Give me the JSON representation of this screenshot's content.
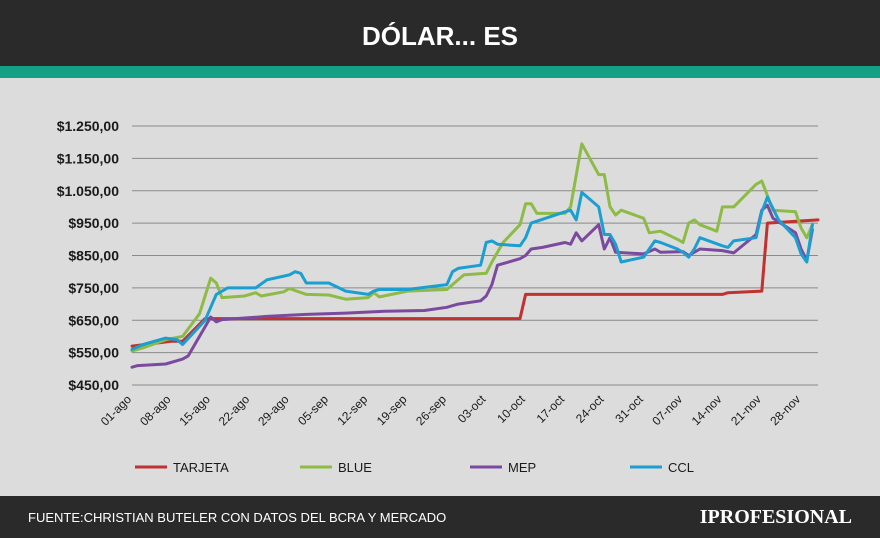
{
  "header": {
    "title": "DÓLAR... ES"
  },
  "footer": {
    "source": "FUENTE:CHRISTIAN BUTELER CON DATOS DEL BCRA Y MERCADO",
    "brand": "IPROFESIONAL"
  },
  "colors": {
    "header_bg": "#2a2a2a",
    "accent_band": "#14a085",
    "chart_bg": "#dcdcdc",
    "tarjeta": "#c0312f",
    "blue": "#8dbb45",
    "mep": "#7b4a9e",
    "ccl": "#1a9fd0"
  },
  "chart_data": {
    "type": "line",
    "title": "DÓLAR... ES",
    "ylim": [
      450,
      1250
    ],
    "yticks": [
      450,
      550,
      650,
      750,
      850,
      950,
      1050,
      1150,
      1250
    ],
    "ytick_labels": [
      "$450,00",
      "$550,00",
      "$650,00",
      "$750,00",
      "$850,00",
      "$950,00",
      "$1.050,00",
      "$1.150,00",
      "$1.250,00"
    ],
    "xticks": [
      "2023-08-01",
      "2023-08-08",
      "2023-08-15",
      "2023-08-22",
      "2023-08-29",
      "2023-09-05",
      "2023-09-12",
      "2023-09-19",
      "2023-09-26",
      "2023-10-03",
      "2023-10-10",
      "2023-10-17",
      "2023-10-24",
      "2023-10-31",
      "2023-11-07",
      "2023-11-14",
      "2023-11-21",
      "2023-11-28"
    ],
    "xtick_labels": [
      "01-ago",
      "08-ago",
      "15-ago",
      "22-ago",
      "29-ago",
      "05-sep",
      "12-sep",
      "19-sep",
      "26-sep",
      "03-oct",
      "10-oct",
      "17-oct",
      "24-oct",
      "31-oct",
      "07-nov",
      "14-nov",
      "21-nov",
      "28-nov"
    ],
    "xlim": [
      "2023-08-01",
      "2023-12-01"
    ],
    "grid": "horizontal",
    "legend": "bottom",
    "series": [
      {
        "name": "TARJETA",
        "color": "#c0312f",
        "points": [
          [
            "2023-08-01",
            570
          ],
          [
            "2023-08-08",
            585
          ],
          [
            "2023-08-10",
            585
          ],
          [
            "2023-08-14",
            655
          ],
          [
            "2023-10-09",
            655
          ],
          [
            "2023-10-10",
            730
          ],
          [
            "2023-11-14",
            730
          ],
          [
            "2023-11-15",
            735
          ],
          [
            "2023-11-21",
            740
          ],
          [
            "2023-11-22",
            950
          ],
          [
            "2023-12-01",
            960
          ]
        ]
      },
      {
        "name": "BLUE",
        "color": "#8dbb45",
        "points": [
          [
            "2023-08-01",
            555
          ],
          [
            "2023-08-03",
            565
          ],
          [
            "2023-08-07",
            590
          ],
          [
            "2023-08-10",
            600
          ],
          [
            "2023-08-13",
            670
          ],
          [
            "2023-08-15",
            780
          ],
          [
            "2023-08-16",
            765
          ],
          [
            "2023-08-17",
            720
          ],
          [
            "2023-08-21",
            725
          ],
          [
            "2023-08-23",
            735
          ],
          [
            "2023-08-24",
            725
          ],
          [
            "2023-08-28",
            738
          ],
          [
            "2023-08-29",
            748
          ],
          [
            "2023-09-01",
            730
          ],
          [
            "2023-09-05",
            728
          ],
          [
            "2023-09-08",
            715
          ],
          [
            "2023-09-12",
            720
          ],
          [
            "2023-09-13",
            735
          ],
          [
            "2023-09-14",
            722
          ],
          [
            "2023-09-19",
            740
          ],
          [
            "2023-09-26",
            745
          ],
          [
            "2023-09-29",
            790
          ],
          [
            "2023-10-03",
            795
          ],
          [
            "2023-10-04",
            830
          ],
          [
            "2023-10-06",
            890
          ],
          [
            "2023-10-09",
            945
          ],
          [
            "2023-10-10",
            1010
          ],
          [
            "2023-10-11",
            1010
          ],
          [
            "2023-10-12",
            980
          ],
          [
            "2023-10-17",
            980
          ],
          [
            "2023-10-18",
            1000
          ],
          [
            "2023-10-20",
            1195
          ],
          [
            "2023-10-23",
            1100
          ],
          [
            "2023-10-24",
            1100
          ],
          [
            "2023-10-25",
            1000
          ],
          [
            "2023-10-26",
            975
          ],
          [
            "2023-10-27",
            990
          ],
          [
            "2023-10-31",
            965
          ],
          [
            "2023-11-01",
            920
          ],
          [
            "2023-11-03",
            925
          ],
          [
            "2023-11-06",
            900
          ],
          [
            "2023-11-07",
            890
          ],
          [
            "2023-11-08",
            950
          ],
          [
            "2023-11-09",
            960
          ],
          [
            "2023-11-10",
            945
          ],
          [
            "2023-11-13",
            925
          ],
          [
            "2023-11-14",
            1000
          ],
          [
            "2023-11-16",
            1000
          ],
          [
            "2023-11-20",
            1070
          ],
          [
            "2023-11-21",
            1080
          ],
          [
            "2023-11-23",
            990
          ],
          [
            "2023-11-27",
            985
          ],
          [
            "2023-11-28",
            935
          ],
          [
            "2023-11-29",
            905
          ],
          [
            "2023-11-30",
            945
          ]
        ]
      },
      {
        "name": "MEP",
        "color": "#7b4a9e",
        "points": [
          [
            "2023-08-01",
            505
          ],
          [
            "2023-08-02",
            510
          ],
          [
            "2023-08-07",
            515
          ],
          [
            "2023-08-09",
            525
          ],
          [
            "2023-08-10",
            530
          ],
          [
            "2023-08-11",
            540
          ],
          [
            "2023-08-14",
            630
          ],
          [
            "2023-08-15",
            660
          ],
          [
            "2023-08-16",
            645
          ],
          [
            "2023-08-17",
            652
          ],
          [
            "2023-08-25",
            662
          ],
          [
            "2023-09-01",
            668
          ],
          [
            "2023-09-08",
            672
          ],
          [
            "2023-09-15",
            678
          ],
          [
            "2023-09-22",
            680
          ],
          [
            "2023-09-26",
            690
          ],
          [
            "2023-09-28",
            700
          ],
          [
            "2023-10-02",
            710
          ],
          [
            "2023-10-03",
            725
          ],
          [
            "2023-10-04",
            760
          ],
          [
            "2023-10-05",
            820
          ],
          [
            "2023-10-09",
            840
          ],
          [
            "2023-10-10",
            850
          ],
          [
            "2023-10-11",
            870
          ],
          [
            "2023-10-13",
            875
          ],
          [
            "2023-10-17",
            890
          ],
          [
            "2023-10-18",
            885
          ],
          [
            "2023-10-19",
            920
          ],
          [
            "2023-10-20",
            895
          ],
          [
            "2023-10-23",
            945
          ],
          [
            "2023-10-24",
            870
          ],
          [
            "2023-10-25",
            905
          ],
          [
            "2023-10-26",
            860
          ],
          [
            "2023-10-31",
            855
          ],
          [
            "2023-11-02",
            870
          ],
          [
            "2023-11-03",
            860
          ],
          [
            "2023-11-07",
            862
          ],
          [
            "2023-11-08",
            850
          ],
          [
            "2023-11-10",
            870
          ],
          [
            "2023-11-14",
            865
          ],
          [
            "2023-11-16",
            858
          ],
          [
            "2023-11-20",
            915
          ],
          [
            "2023-11-21",
            990
          ],
          [
            "2023-11-22",
            1005
          ],
          [
            "2023-11-23",
            965
          ],
          [
            "2023-11-27",
            920
          ],
          [
            "2023-11-28",
            870
          ],
          [
            "2023-11-29",
            835
          ],
          [
            "2023-11-30",
            930
          ]
        ]
      },
      {
        "name": "CCL",
        "color": "#1a9fd0",
        "points": [
          [
            "2023-08-01",
            560
          ],
          [
            "2023-08-03",
            575
          ],
          [
            "2023-08-07",
            595
          ],
          [
            "2023-08-09",
            590
          ],
          [
            "2023-08-10",
            575
          ],
          [
            "2023-08-14",
            650
          ],
          [
            "2023-08-16",
            730
          ],
          [
            "2023-08-18",
            750
          ],
          [
            "2023-08-23",
            750
          ],
          [
            "2023-08-25",
            775
          ],
          [
            "2023-08-29",
            790
          ],
          [
            "2023-08-30",
            800
          ],
          [
            "2023-08-31",
            795
          ],
          [
            "2023-09-01",
            765
          ],
          [
            "2023-09-05",
            765
          ],
          [
            "2023-09-08",
            740
          ],
          [
            "2023-09-12",
            730
          ],
          [
            "2023-09-13",
            740
          ],
          [
            "2023-09-14",
            745
          ],
          [
            "2023-09-19",
            745
          ],
          [
            "2023-09-26",
            760
          ],
          [
            "2023-09-27",
            800
          ],
          [
            "2023-09-28",
            810
          ],
          [
            "2023-10-02",
            820
          ],
          [
            "2023-10-03",
            890
          ],
          [
            "2023-10-04",
            895
          ],
          [
            "2023-10-05",
            885
          ],
          [
            "2023-10-09",
            880
          ],
          [
            "2023-10-10",
            905
          ],
          [
            "2023-10-11",
            950
          ],
          [
            "2023-10-17",
            985
          ],
          [
            "2023-10-18",
            990
          ],
          [
            "2023-10-19",
            960
          ],
          [
            "2023-10-20",
            1045
          ],
          [
            "2023-10-23",
            1000
          ],
          [
            "2023-10-24",
            915
          ],
          [
            "2023-10-25",
            915
          ],
          [
            "2023-10-26",
            885
          ],
          [
            "2023-10-27",
            830
          ],
          [
            "2023-10-31",
            845
          ],
          [
            "2023-11-02",
            895
          ],
          [
            "2023-11-03",
            890
          ],
          [
            "2023-11-06",
            870
          ],
          [
            "2023-11-07",
            860
          ],
          [
            "2023-11-08",
            845
          ],
          [
            "2023-11-09",
            870
          ],
          [
            "2023-11-10",
            905
          ],
          [
            "2023-11-14",
            880
          ],
          [
            "2023-11-15",
            875
          ],
          [
            "2023-11-16",
            895
          ],
          [
            "2023-11-20",
            905
          ],
          [
            "2023-11-21",
            985
          ],
          [
            "2023-11-22",
            1030
          ],
          [
            "2023-11-24",
            960
          ],
          [
            "2023-11-27",
            905
          ],
          [
            "2023-11-28",
            855
          ],
          [
            "2023-11-29",
            830
          ],
          [
            "2023-11-30",
            945
          ]
        ]
      }
    ]
  }
}
